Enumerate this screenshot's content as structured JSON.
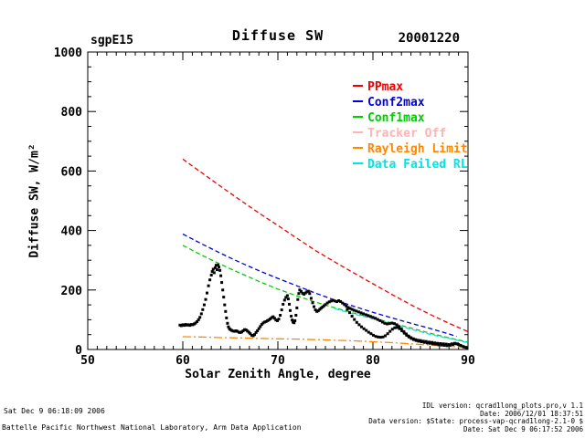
{
  "header": {
    "left_label": "sgpE15",
    "title": "Diffuse SW",
    "right_label": "20001220"
  },
  "footer": {
    "timestamp": "Sat Dec  9 06:18:09 2006",
    "organization": "Battelle Pacific Northwest National Laboratory, Arm Data Application",
    "idl_version": "IDL version: qcrad1long_plots.pro,v 1.1",
    "idl_date": "Date: 2006/12/01 18:37:51",
    "data_version": "Data version: $State: process-vap-qcrad1long-2.1-0 $",
    "data_date": "Date: Sat Dec  9 06:17:52 2006"
  },
  "chart_data": {
    "type": "scatter",
    "title": "Diffuse SW",
    "xlabel": "Solar Zenith Angle, degree",
    "ylabel": "Diffuse SW, W/m²",
    "xlim": [
      50,
      90
    ],
    "ylim": [
      0,
      1000
    ],
    "xticks": [
      50,
      60,
      70,
      80,
      90
    ],
    "yticks": [
      0,
      200,
      400,
      600,
      800,
      1000
    ],
    "x_minor_step": 1,
    "y_minor_step": 50,
    "grid": false,
    "legend_position": "top-right",
    "frame_color": "#000000",
    "series": [
      {
        "name": "PPmax",
        "color": "#ee0000",
        "style": "dashed",
        "points": [
          [
            60,
            640
          ],
          [
            62,
            594
          ],
          [
            64,
            548
          ],
          [
            66,
            503
          ],
          [
            68,
            459
          ],
          [
            70,
            417
          ],
          [
            72,
            374
          ],
          [
            74,
            332
          ],
          [
            76,
            294
          ],
          [
            78,
            257
          ],
          [
            80,
            221
          ],
          [
            82,
            185
          ],
          [
            84,
            150
          ],
          [
            86,
            118
          ],
          [
            88,
            88
          ],
          [
            90,
            60
          ]
        ]
      },
      {
        "name": "Conf2max",
        "color": "#0000dd",
        "style": "dashed",
        "points": [
          [
            60,
            388
          ],
          [
            62,
            355
          ],
          [
            64,
            323
          ],
          [
            66,
            293
          ],
          [
            68,
            265
          ],
          [
            70,
            239
          ],
          [
            72,
            214
          ],
          [
            74,
            189
          ],
          [
            76,
            166
          ],
          [
            78,
            145
          ],
          [
            80,
            125
          ],
          [
            82,
            106
          ],
          [
            84,
            88
          ],
          [
            86,
            71
          ],
          [
            88,
            52
          ],
          [
            88.8,
            44
          ]
        ]
      },
      {
        "name": "Conf1max",
        "color": "#00cc00",
        "style": "dashed",
        "points": [
          [
            60,
            350
          ],
          [
            62,
            317
          ],
          [
            64,
            286
          ],
          [
            66,
            257
          ],
          [
            68,
            229
          ],
          [
            70,
            203
          ],
          [
            72,
            180
          ],
          [
            74,
            159
          ],
          [
            76,
            140
          ],
          [
            78,
            122
          ],
          [
            80,
            106
          ],
          [
            82,
            89
          ],
          [
            84,
            72
          ],
          [
            86,
            55
          ],
          [
            88,
            39
          ],
          [
            90,
            25
          ]
        ]
      },
      {
        "name": "Tracker Off",
        "color": "#ffb3b3",
        "style": "solid",
        "points": []
      },
      {
        "name": "Rayleigh Limit",
        "color": "#ff8800",
        "style": "dashdot",
        "points": [
          [
            60,
            43
          ],
          [
            62,
            42
          ],
          [
            64,
            40
          ],
          [
            66,
            39
          ],
          [
            68,
            37
          ],
          [
            70,
            36
          ],
          [
            72,
            35
          ],
          [
            74,
            33
          ],
          [
            76,
            31
          ],
          [
            78,
            29
          ],
          [
            80,
            26
          ],
          [
            82,
            23
          ],
          [
            84,
            19
          ],
          [
            86,
            15
          ],
          [
            88,
            11
          ],
          [
            90,
            7
          ]
        ]
      },
      {
        "name": "Data Failed RL",
        "color": "#00e5e5",
        "style": "dashed",
        "points": [
          [
            76,
            137
          ],
          [
            77,
            128
          ],
          [
            78,
            119
          ],
          [
            79,
            111
          ],
          [
            80,
            103
          ],
          [
            81,
            94
          ],
          [
            82,
            86
          ],
          [
            83,
            77
          ],
          [
            84,
            68
          ],
          [
            85,
            60
          ],
          [
            86,
            51
          ],
          [
            87,
            44
          ],
          [
            88,
            37
          ],
          [
            89,
            30
          ],
          [
            90,
            23
          ]
        ]
      }
    ],
    "observations": {
      "name": "Diffuse SW measurements",
      "color": "#000000",
      "marker": "square",
      "points": [
        [
          59.7,
          82
        ],
        [
          59.85,
          80
        ],
        [
          60.0,
          83
        ],
        [
          60.15,
          81
        ],
        [
          60.3,
          84
        ],
        [
          60.45,
          82
        ],
        [
          60.6,
          83
        ],
        [
          60.75,
          81
        ],
        [
          60.9,
          84
        ],
        [
          61.05,
          83
        ],
        [
          61.2,
          86
        ],
        [
          61.35,
          89
        ],
        [
          61.5,
          94
        ],
        [
          61.65,
          100
        ],
        [
          61.8,
          108
        ],
        [
          61.95,
          120
        ],
        [
          62.1,
          134
        ],
        [
          62.25,
          150
        ],
        [
          62.4,
          168
        ],
        [
          62.55,
          190
        ],
        [
          62.7,
          214
        ],
        [
          62.85,
          234
        ],
        [
          63.0,
          250
        ],
        [
          63.1,
          262
        ],
        [
          63.2,
          270
        ],
        [
          63.3,
          258
        ],
        [
          63.4,
          275
        ],
        [
          63.5,
          283
        ],
        [
          63.6,
          268
        ],
        [
          63.7,
          284
        ],
        [
          63.8,
          277
        ],
        [
          63.9,
          266
        ],
        [
          64.0,
          248
        ],
        [
          64.1,
          225
        ],
        [
          64.2,
          200
        ],
        [
          64.3,
          176
        ],
        [
          64.4,
          150
        ],
        [
          64.5,
          128
        ],
        [
          64.6,
          106
        ],
        [
          64.7,
          88
        ],
        [
          64.8,
          76
        ],
        [
          64.9,
          70
        ],
        [
          65.0,
          67
        ],
        [
          65.15,
          64
        ],
        [
          65.3,
          62
        ],
        [
          65.45,
          61
        ],
        [
          65.6,
          63
        ],
        [
          65.75,
          61
        ],
        [
          65.9,
          58
        ],
        [
          66.05,
          57
        ],
        [
          66.2,
          59
        ],
        [
          66.35,
          63
        ],
        [
          66.5,
          67
        ],
        [
          66.65,
          66
        ],
        [
          66.8,
          62
        ],
        [
          66.95,
          58
        ],
        [
          67.1,
          53
        ],
        [
          67.25,
          48
        ],
        [
          67.4,
          46
        ],
        [
          67.55,
          50
        ],
        [
          67.7,
          57
        ],
        [
          67.85,
          63
        ],
        [
          68.0,
          70
        ],
        [
          68.15,
          77
        ],
        [
          68.3,
          84
        ],
        [
          68.45,
          89
        ],
        [
          68.6,
          92
        ],
        [
          68.75,
          94
        ],
        [
          68.9,
          97
        ],
        [
          69.05,
          99
        ],
        [
          69.2,
          103
        ],
        [
          69.35,
          107
        ],
        [
          69.5,
          110
        ],
        [
          69.65,
          105
        ],
        [
          69.8,
          99
        ],
        [
          69.95,
          97
        ],
        [
          70.1,
          102
        ],
        [
          70.25,
          115
        ],
        [
          70.4,
          133
        ],
        [
          70.55,
          152
        ],
        [
          70.7,
          166
        ],
        [
          70.85,
          175
        ],
        [
          71.0,
          181
        ],
        [
          71.1,
          170
        ],
        [
          71.2,
          152
        ],
        [
          71.3,
          131
        ],
        [
          71.4,
          112
        ],
        [
          71.5,
          99
        ],
        [
          71.6,
          92
        ],
        [
          71.7,
          90
        ],
        [
          71.8,
          97
        ],
        [
          71.9,
          115
        ],
        [
          72.0,
          140
        ],
        [
          72.1,
          168
        ],
        [
          72.2,
          188
        ],
        [
          72.3,
          200
        ],
        [
          72.45,
          195
        ],
        [
          72.6,
          189
        ],
        [
          72.75,
          186
        ],
        [
          72.9,
          190
        ],
        [
          73.05,
          194
        ],
        [
          73.2,
          196
        ],
        [
          73.35,
          188
        ],
        [
          73.5,
          172
        ],
        [
          73.65,
          157
        ],
        [
          73.8,
          144
        ],
        [
          73.95,
          133
        ],
        [
          74.1,
          128
        ],
        [
          74.25,
          130
        ],
        [
          74.4,
          135
        ],
        [
          74.55,
          139
        ],
        [
          74.7,
          143
        ],
        [
          74.85,
          147
        ],
        [
          75.0,
          151
        ],
        [
          75.2,
          156
        ],
        [
          75.4,
          160
        ],
        [
          75.6,
          163
        ],
        [
          75.8,
          165
        ],
        [
          76.0,
          163
        ],
        [
          76.2,
          161
        ],
        [
          76.4,
          164
        ],
        [
          76.6,
          161
        ],
        [
          76.8,
          156
        ],
        [
          77.0,
          151
        ],
        [
          77.2,
          146
        ],
        [
          77.4,
          141
        ],
        [
          77.6,
          138
        ],
        [
          77.8,
          135
        ],
        [
          78.0,
          132
        ],
        [
          78.25,
          129
        ],
        [
          78.5,
          126
        ],
        [
          78.75,
          123
        ],
        [
          79.0,
          120
        ],
        [
          79.25,
          117
        ],
        [
          79.5,
          114
        ],
        [
          79.75,
          111
        ],
        [
          80.0,
          108
        ],
        [
          80.25,
          105
        ],
        [
          80.5,
          101
        ],
        [
          80.75,
          97
        ],
        [
          81.0,
          92
        ],
        [
          81.25,
          88
        ],
        [
          81.5,
          86
        ],
        [
          81.75,
          87
        ],
        [
          82.0,
          89
        ],
        [
          82.25,
          87
        ],
        [
          82.5,
          83
        ],
        [
          82.75,
          77
        ],
        [
          83.0,
          69
        ],
        [
          83.25,
          60
        ],
        [
          83.5,
          52
        ],
        [
          83.75,
          45
        ],
        [
          84.0,
          40
        ],
        [
          84.25,
          36
        ],
        [
          84.5,
          33
        ],
        [
          84.75,
          31
        ],
        [
          85.0,
          30
        ],
        [
          85.3,
          28
        ],
        [
          85.6,
          27
        ],
        [
          85.9,
          25
        ],
        [
          86.2,
          24
        ],
        [
          86.5,
          22
        ],
        [
          86.8,
          21
        ],
        [
          87.1,
          20
        ],
        [
          87.4,
          19
        ],
        [
          87.7,
          18
        ],
        [
          88.0,
          17
        ],
        [
          88.3,
          19
        ],
        [
          88.6,
          21
        ],
        [
          88.9,
          19
        ],
        [
          89.2,
          14
        ],
        [
          89.5,
          10
        ],
        [
          89.8,
          7
        ],
        [
          77.3,
          135
        ],
        [
          77.55,
          124
        ],
        [
          77.8,
          112
        ],
        [
          78.05,
          101
        ],
        [
          78.3,
          91
        ],
        [
          78.55,
          83
        ],
        [
          78.8,
          76
        ],
        [
          79.05,
          70
        ],
        [
          79.3,
          64
        ],
        [
          79.55,
          58
        ],
        [
          79.8,
          53
        ],
        [
          80.05,
          48
        ],
        [
          80.3,
          44
        ],
        [
          80.55,
          42
        ],
        [
          80.8,
          41
        ],
        [
          81.05,
          42
        ],
        [
          81.3,
          46
        ],
        [
          81.55,
          53
        ],
        [
          81.8,
          61
        ],
        [
          82.05,
          68
        ],
        [
          82.3,
          73
        ],
        [
          82.55,
          74
        ],
        [
          82.8,
          70
        ],
        [
          83.05,
          63
        ],
        [
          83.3,
          55
        ],
        [
          83.55,
          48
        ],
        [
          83.8,
          42
        ],
        [
          84.05,
          37
        ],
        [
          84.3,
          33
        ],
        [
          84.55,
          30
        ],
        [
          84.8,
          28
        ],
        [
          85.1,
          26
        ],
        [
          85.4,
          24
        ],
        [
          85.7,
          22
        ],
        [
          86.0,
          21
        ],
        [
          86.3,
          19
        ],
        [
          86.6,
          18
        ],
        [
          86.9,
          16
        ],
        [
          87.2,
          15
        ],
        [
          87.5,
          14
        ],
        [
          87.8,
          13
        ],
        [
          88.1,
          14
        ],
        [
          88.4,
          17
        ],
        [
          88.7,
          19
        ],
        [
          89.0,
          17
        ],
        [
          89.3,
          12
        ],
        [
          89.6,
          8
        ],
        [
          89.9,
          5
        ]
      ]
    }
  }
}
